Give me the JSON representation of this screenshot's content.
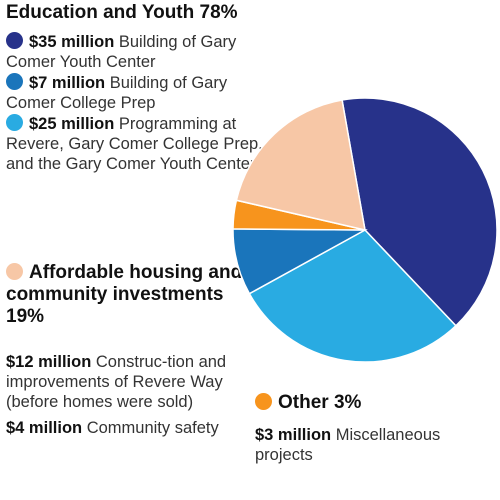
{
  "education": {
    "title": "Education and Youth 78%",
    "items": [
      {
        "amount": "$35 million",
        "text": "Building of Gary Comer Youth Center",
        "color": "#27328a"
      },
      {
        "amount": "$7 million",
        "text": "Building of Gary Comer College Prep",
        "color": "#1a75bb"
      },
      {
        "amount": "$25 million",
        "text": "Programming at Revere, Gary Comer College Prep, and the Gary Comer Youth Center",
        "color": "#29abe2"
      }
    ]
  },
  "housing": {
    "title": "Affordable housing and community investments 19%",
    "color": "#f7c7a6",
    "items": [
      {
        "amount": "$12 million",
        "text": "Construc-tion and improvements of Revere Way (before homes were sold)"
      },
      {
        "amount": "$4 million",
        "text": "Community safety"
      }
    ]
  },
  "other": {
    "title": "Other 3%",
    "color": "#f7941d",
    "items": [
      {
        "amount": "$3 million",
        "text": "Miscellaneous projects"
      }
    ]
  },
  "chart_data": {
    "type": "pie",
    "title": "",
    "slices": [
      {
        "label": "Building of Gary Comer Youth Center",
        "value": 35,
        "color": "#27328a"
      },
      {
        "label": "Programming at Revere, Gary Comer College Prep, and the Gary Comer Youth Center",
        "value": 25,
        "color": "#29abe2"
      },
      {
        "label": "Building of Gary Comer College Prep",
        "value": 7,
        "color": "#1a75bb"
      },
      {
        "label": "Miscellaneous projects",
        "value": 3,
        "color": "#f7941d"
      },
      {
        "label": "Construction and improvements of Revere Way / Community safety",
        "value": 16,
        "color": "#f7c7a6"
      }
    ]
  }
}
